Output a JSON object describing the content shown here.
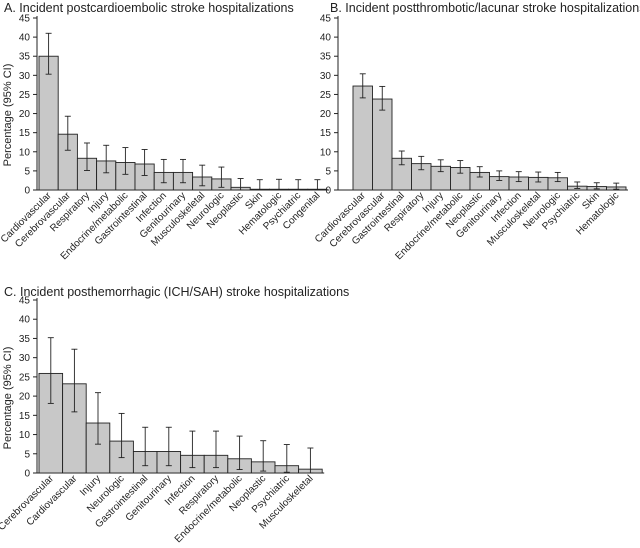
{
  "chart_data": [
    {
      "panel_label": "A.",
      "title": "Incident postcardioembolic stroke hospitalizations",
      "type": "bar",
      "ylabel": "Percentage (95% CI)",
      "ylim": [
        0,
        45
      ],
      "yticks": [
        0,
        5,
        10,
        15,
        20,
        25,
        30,
        35,
        40,
        45
      ],
      "grid": false,
      "error_bars": true,
      "categories": [
        "Cardiovascular",
        "Cerebrovascular",
        "Respiratory",
        "Injury",
        "Endocrine/metabolic",
        "Gastrointestinal",
        "Infection",
        "Genitourinary",
        "Musculoskeletal",
        "Neurologic",
        "Neoplastic",
        "Skin",
        "Hematologic",
        "Psychiatric",
        "Congenital"
      ],
      "values": [
        35.0,
        14.6,
        8.3,
        7.6,
        7.2,
        6.8,
        4.6,
        4.6,
        3.4,
        2.9,
        0.7,
        0.2,
        0.2,
        0.2,
        0.2
      ],
      "ci_low": [
        30.3,
        10.4,
        5.1,
        4.5,
        4.1,
        3.8,
        1.9,
        1.9,
        1.1,
        0.7,
        0.0,
        0.0,
        0.0,
        0.0,
        0.0
      ],
      "ci_high": [
        41.0,
        19.3,
        12.3,
        11.7,
        11.1,
        10.6,
        8.0,
        8.0,
        6.5,
        6.0,
        3.0,
        2.7,
        2.8,
        2.7,
        2.7
      ]
    },
    {
      "panel_label": "B.",
      "title": "Incident postthrombotic/lacunar stroke hospitalizations",
      "type": "bar",
      "ylabel": "",
      "ylim": [
        0,
        45
      ],
      "yticks": [
        0,
        5,
        10,
        15,
        20,
        25,
        30,
        35,
        40,
        45
      ],
      "grid": false,
      "error_bars": true,
      "categories": [
        "Cardiovascular",
        "Cerebrovascular",
        "Gastrointestinal",
        "Respiratory",
        "Injury",
        "Endocrine/metabolic",
        "Neoplastic",
        "Genitourinary",
        "Infection",
        "Musculoskeletal",
        "Neurologic",
        "Psychiatric",
        "Skin",
        "Hematologic"
      ],
      "values": [
        27.2,
        23.8,
        8.3,
        6.9,
        6.2,
        5.9,
        4.6,
        3.5,
        3.4,
        3.3,
        3.2,
        1.0,
        0.9,
        0.8
      ],
      "ci_low": [
        24.1,
        20.9,
        6.6,
        5.3,
        4.8,
        4.4,
        3.4,
        2.5,
        2.2,
        2.1,
        2.2,
        0.4,
        0.3,
        0.2
      ],
      "ci_high": [
        30.4,
        27.1,
        10.2,
        8.8,
        7.9,
        7.7,
        6.1,
        5.0,
        4.8,
        4.7,
        4.6,
        2.1,
        1.9,
        1.8
      ]
    },
    {
      "panel_label": "C.",
      "title": "Incident posthemorrhagic (ICH/SAH) stroke hospitalizations",
      "type": "bar",
      "ylabel": "Percentage (95% CI)",
      "ylim": [
        0,
        45
      ],
      "yticks": [
        0,
        5,
        10,
        15,
        20,
        25,
        30,
        35,
        40,
        45
      ],
      "grid": false,
      "error_bars": true,
      "categories": [
        "Cerebrovascular",
        "Cardiovascular",
        "Injury",
        "Neurologic",
        "Gastrointestinal",
        "Genitourinary",
        "Infection",
        "Respiratory",
        "Endocrine/metabolic",
        "Neoplastic",
        "Psychiatric",
        "Musculoskeletal"
      ],
      "values": [
        25.9,
        23.2,
        13.0,
        8.3,
        5.6,
        5.6,
        4.6,
        4.6,
        3.7,
        2.9,
        1.9,
        1.0
      ],
      "ci_low": [
        18.1,
        15.9,
        7.5,
        4.0,
        1.9,
        1.9,
        1.4,
        1.4,
        0.9,
        0.5,
        0.2,
        0.0
      ],
      "ci_high": [
        35.2,
        32.2,
        20.9,
        15.5,
        11.9,
        11.9,
        10.9,
        10.9,
        9.6,
        8.4,
        7.4,
        6.5
      ]
    }
  ]
}
